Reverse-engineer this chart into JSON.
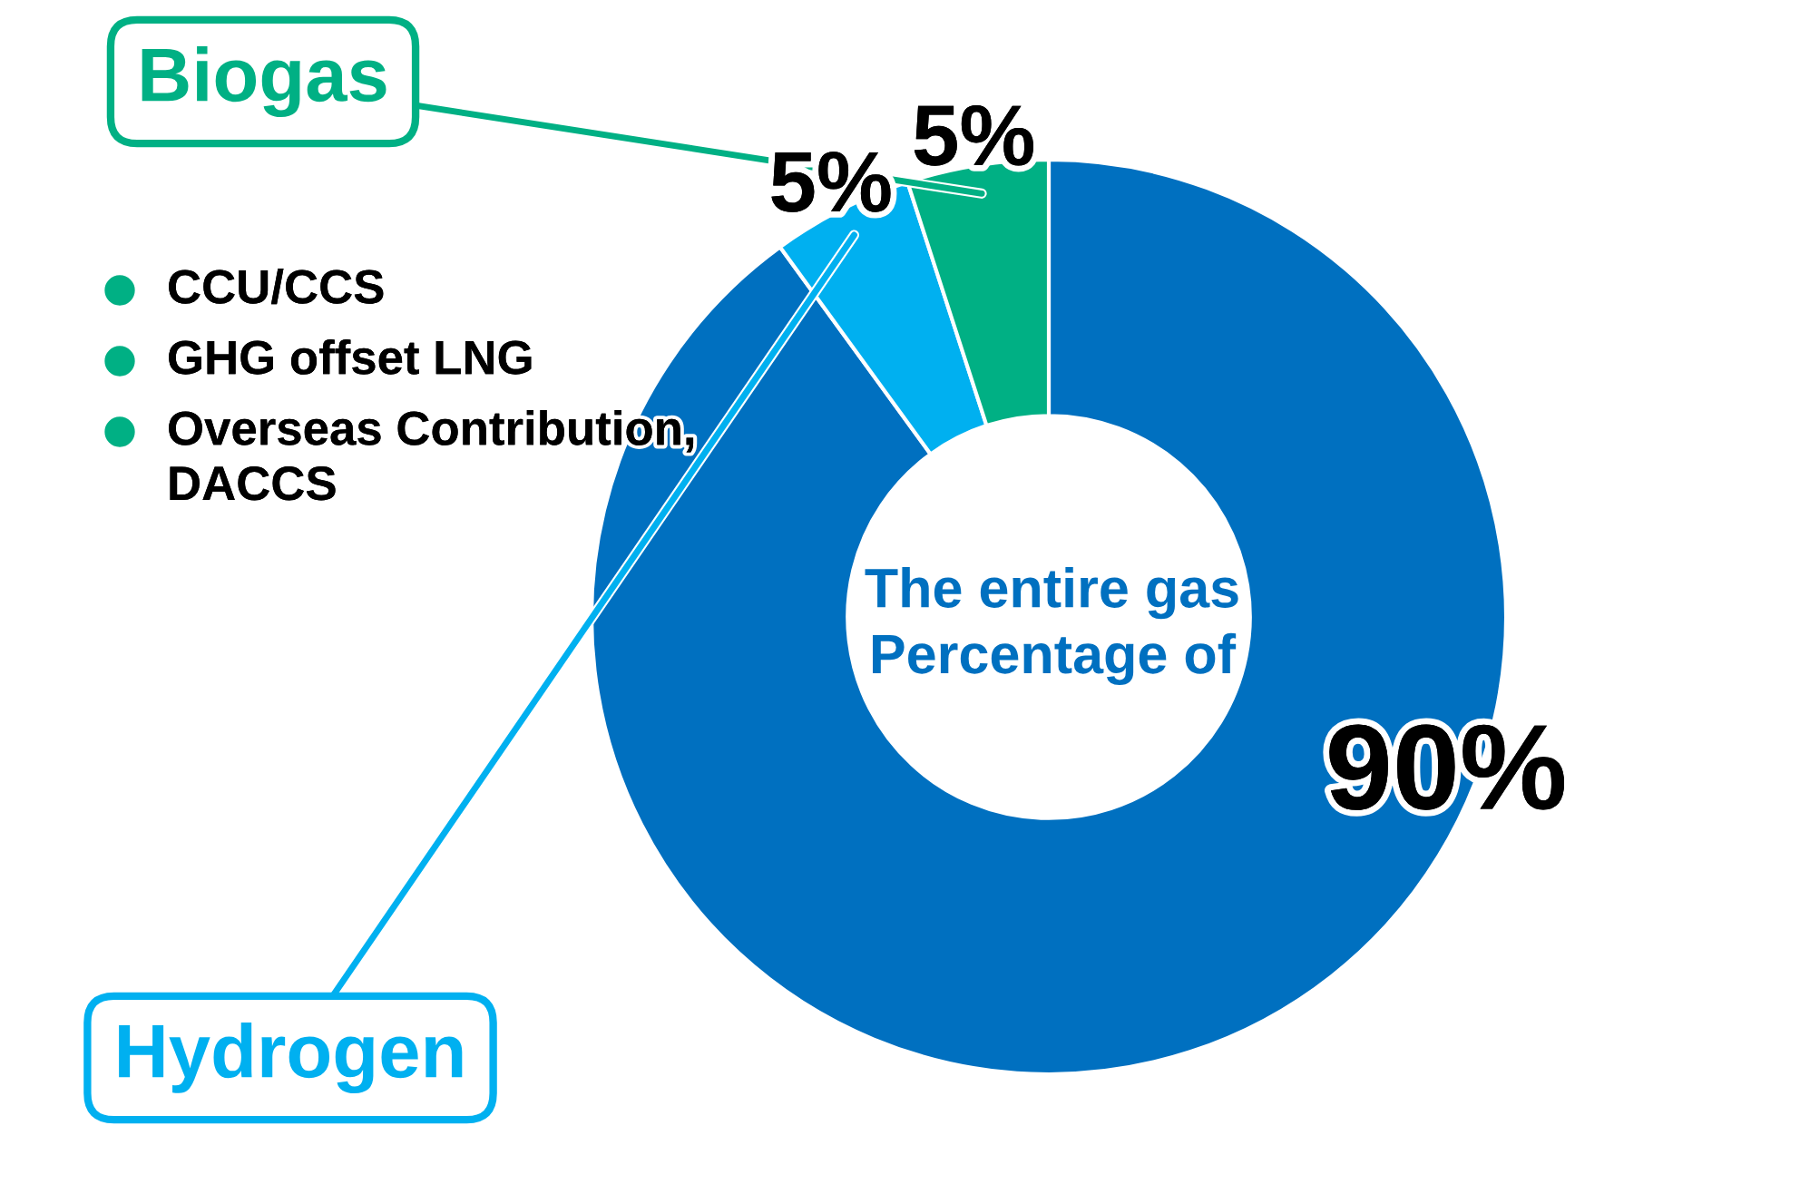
{
  "chart_data": {
    "type": "donut",
    "categories": [
      null,
      "Hydrogen",
      "Biogas"
    ],
    "values": [
      90,
      5,
      5
    ],
    "colors": [
      "#0070c0",
      "#00b0f0",
      "#00b084"
    ],
    "value_labels": [
      "90%",
      "5%",
      "5%"
    ],
    "annotations": [
      "CCU/CCS",
      "GHG offset LNG",
      "Overseas Contribution,\nDACCS",
      "The entire gas\nPercentage of"
    ]
  }
}
